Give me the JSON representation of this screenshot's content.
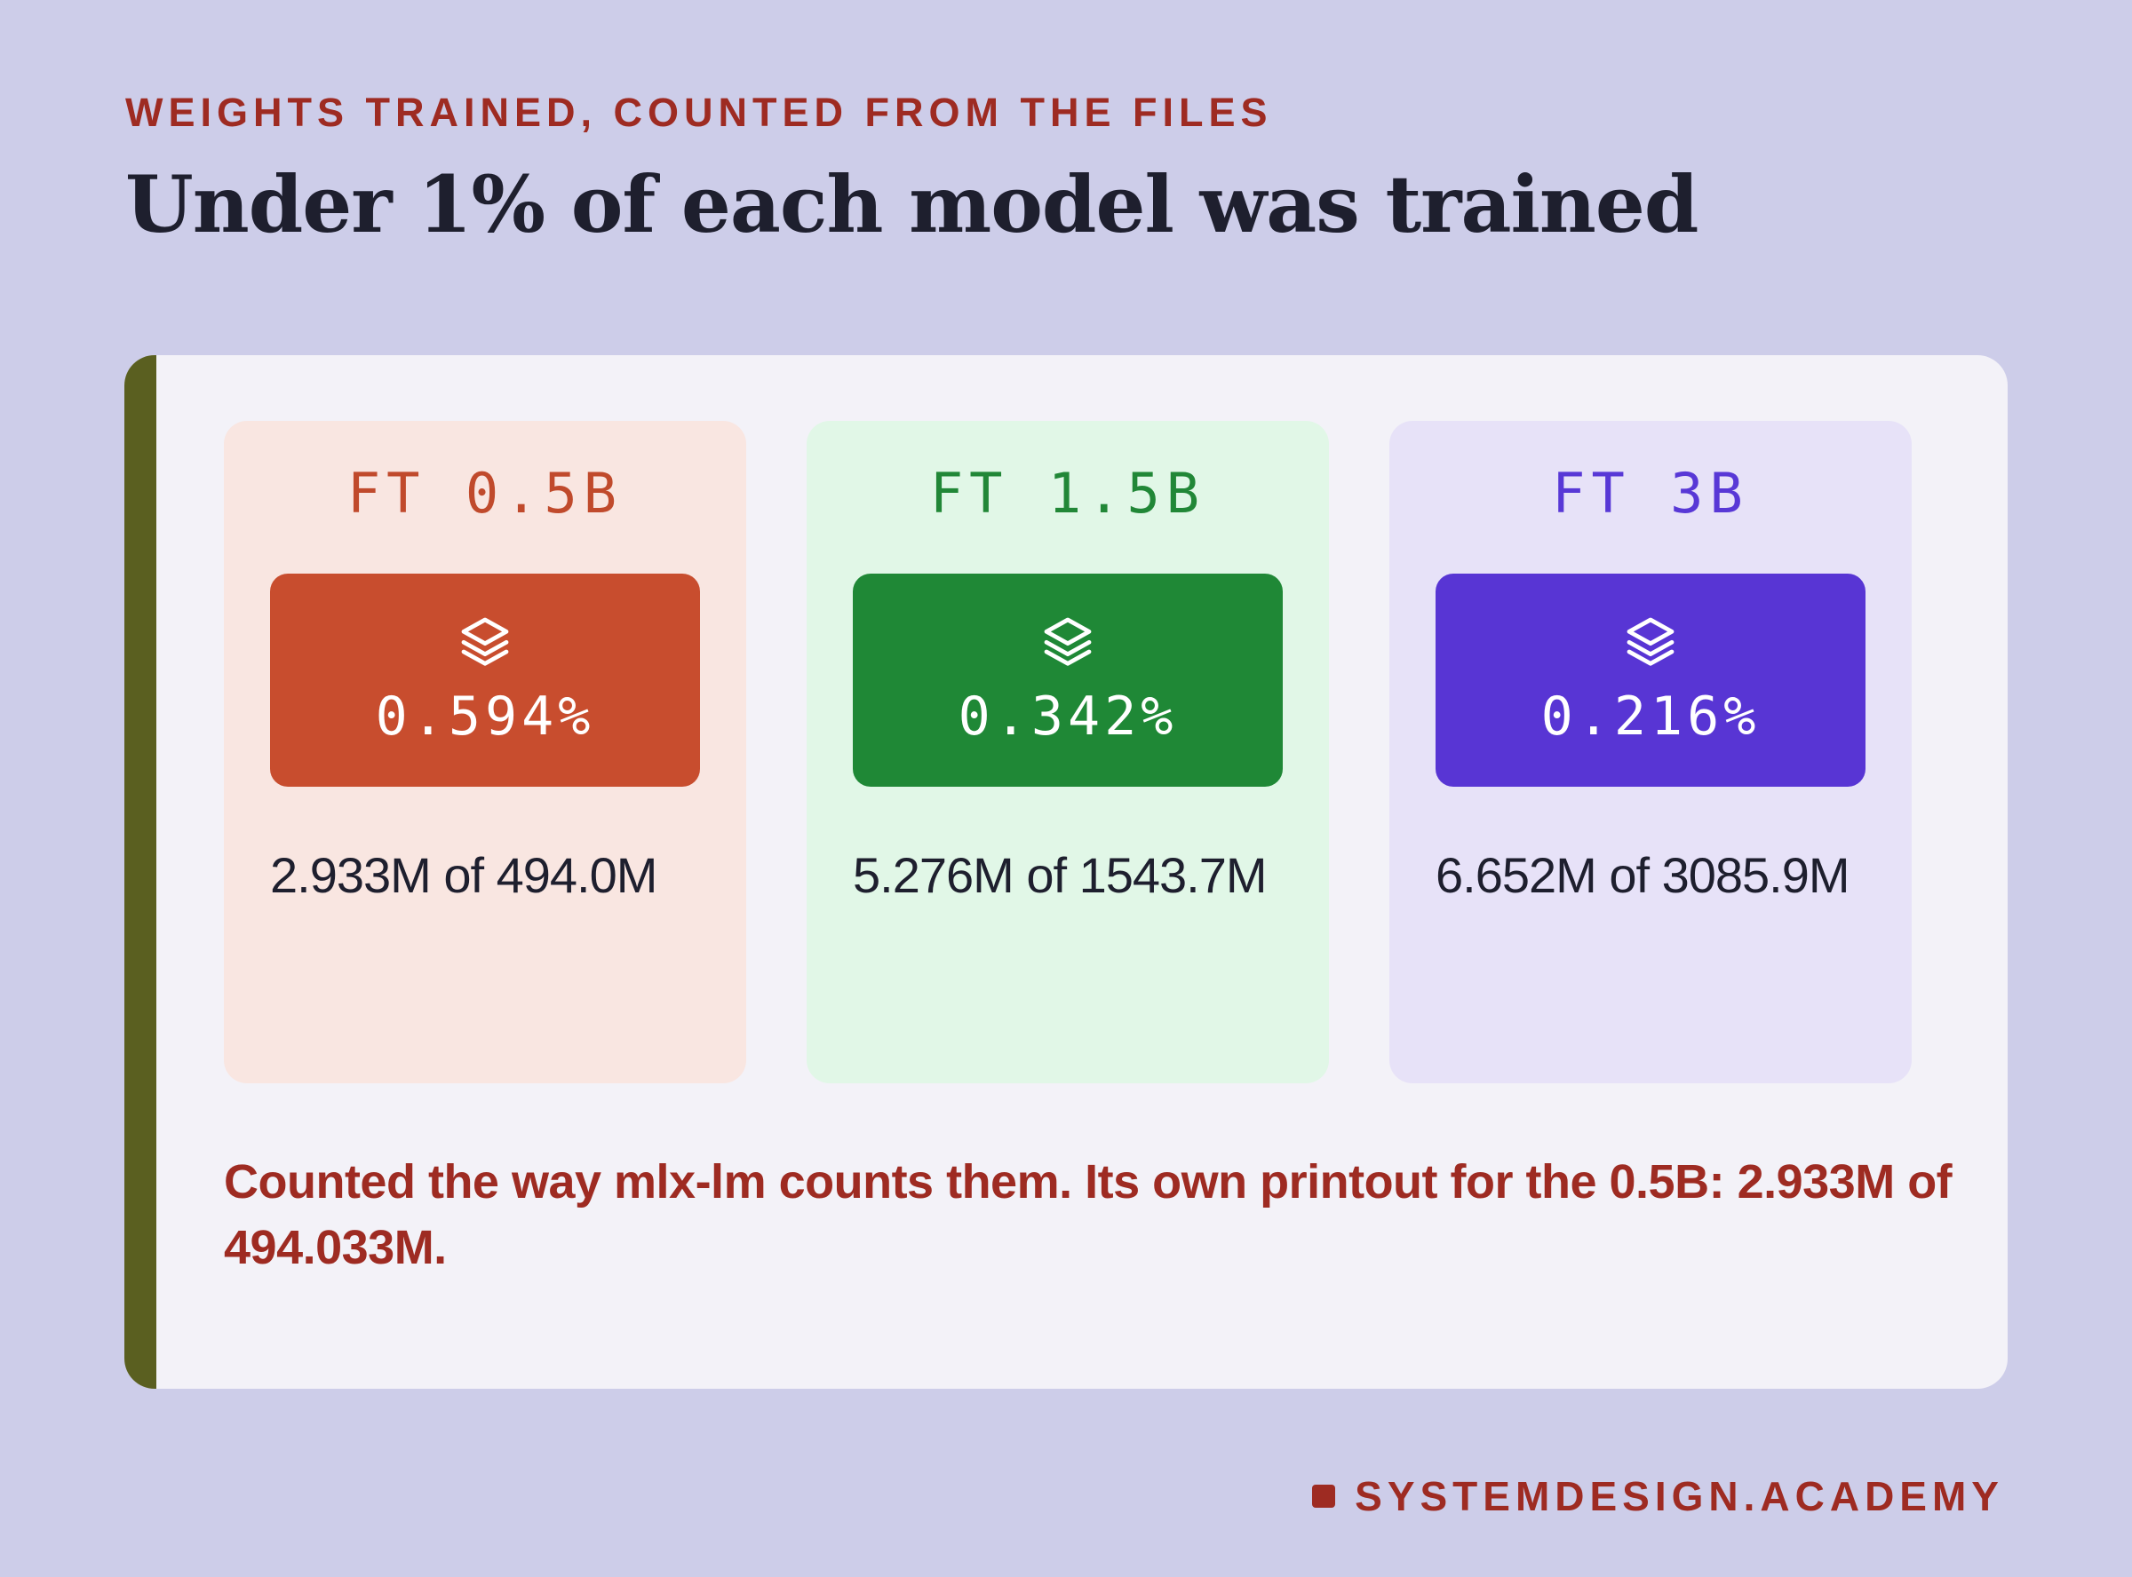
{
  "header": {
    "kicker": "WEIGHTS TRAINED, COUNTED FROM THE FILES",
    "title": "Under 1% of each model was trained"
  },
  "cards": [
    {
      "label": "FT 0.5B",
      "icon": "layers-icon",
      "value": "0.594%",
      "text": "2.933M of 494.0M",
      "accent": "#c84d2e",
      "label_color": "#c04a2c",
      "background": "#f9e6e1"
    },
    {
      "label": "FT 1.5B",
      "icon": "layers-icon",
      "value": "0.342%",
      "text": "5.276M of 1543.7M",
      "accent": "#1f8836",
      "label_color": "#218737",
      "background": "#e1f7e7"
    },
    {
      "label": "FT 3B",
      "icon": "layers-icon",
      "value": "0.216%",
      "text": "6.652M of 3085.9M",
      "accent": "#5835d4",
      "label_color": "#5838d6",
      "background": "#e7e2f8"
    }
  ],
  "note": "Counted the way mlx-lm counts them. Its own printout for the 0.5B: 2.933M of 494.033M.",
  "brand": "SYSTEMDESIGN.ACADEMY"
}
